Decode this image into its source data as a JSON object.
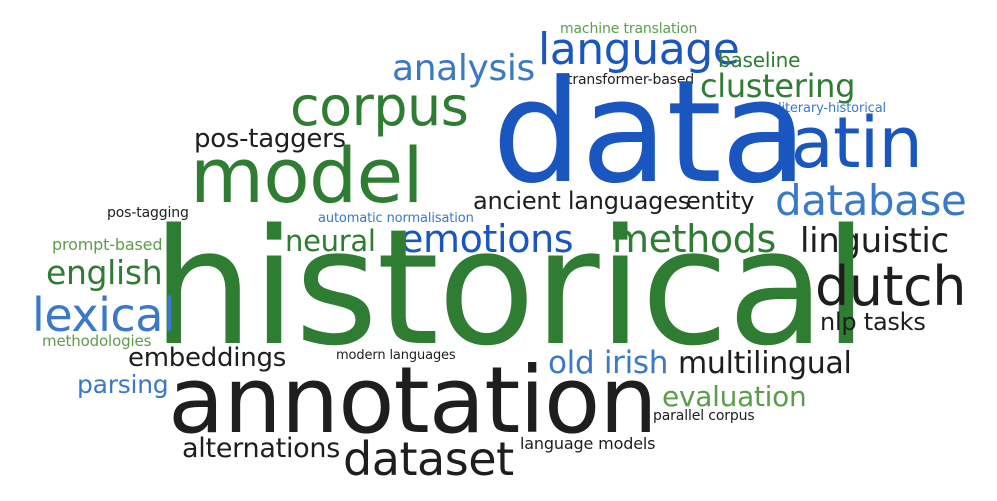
{
  "colors": {
    "green": "#2e7d32",
    "blue": "#1a56bf",
    "light_blue": "#3a78c9",
    "dark": "#1e1e1e",
    "light_green": "#5b9e4a",
    "background": "#ffffff"
  },
  "words": {
    "machine_translation": "machine translation",
    "language": "language",
    "baseline": "baseline",
    "analysis": "analysis",
    "clustering": "clustering",
    "transformer_based": "transformer-based",
    "corpus": "corpus",
    "literary_historical": "literary-historical",
    "data": "data",
    "pos_taggers": "pos-taggers",
    "latin": "latin",
    "model": "model",
    "database": "database",
    "ancient_languages": "ancient languages",
    "entity": "entity",
    "pos_tagging": "pos-tagging",
    "automatic_normalisation": "automatic normalisation",
    "linguistic": "linguistic",
    "neural": "neural",
    "emotions": "emotions",
    "methods": "methods",
    "prompt_based": "prompt-based",
    "historical": "historical",
    "english": "english",
    "dutch": "dutch",
    "lexical": "lexical",
    "nlp_tasks": "nlp tasks",
    "methodologies": "methodologies",
    "embeddings": "embeddings",
    "modern_languages": "modern languages",
    "old_irish": "old irish",
    "multilingual": "multilingual",
    "parsing": "parsing",
    "annotation": "annotation",
    "evaluation": "evaluation",
    "parallel_corpus": "parallel corpus",
    "alternations": "alternations",
    "language_models": "language models",
    "dataset": "dataset"
  }
}
